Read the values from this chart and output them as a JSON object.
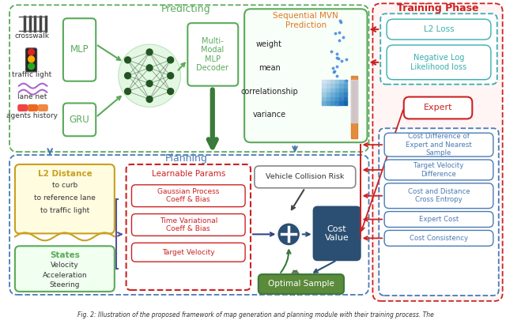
{
  "title": "Fig. 2: Illustration of the proposed framework of map generation and planning module with their training process. The",
  "predicting_label": "Predicting",
  "training_label": "Training Phase",
  "planning_label": "Planning",
  "bg_color": "#ffffff",
  "green_color": "#5aaa5a",
  "dark_green": "#3a7a3a",
  "olive_green": "#6b8e23",
  "orange_color": "#e07820",
  "red_color": "#cc2222",
  "teal_color": "#3aaeae",
  "blue_dark": "#2b4f72",
  "blue_mid": "#4a7ab5",
  "gold_color": "#c8a020",
  "input_items": [
    "crosswalk",
    "traffic light",
    "lane net",
    "agents history"
  ],
  "mvn_items": [
    "weight",
    "mean",
    "correlationship",
    "variance"
  ],
  "l2_dist_items": [
    "to curb",
    "to reference lane",
    "to traffic light"
  ],
  "states_items": [
    "Velocity",
    "Acceleration",
    "Steering"
  ],
  "learnable_items": [
    "Gaussian Process\nCoeff & Bias",
    "Time Variational\nCoeff & Bias",
    "Target Velocity"
  ],
  "planning_items": [
    "Cost Difference of\nExpert and Nearest\nSample",
    "Target Velocity\nDifference",
    "Cost and Distance\nCross Entropy",
    "Expert Cost",
    "Cost Consistency"
  ]
}
